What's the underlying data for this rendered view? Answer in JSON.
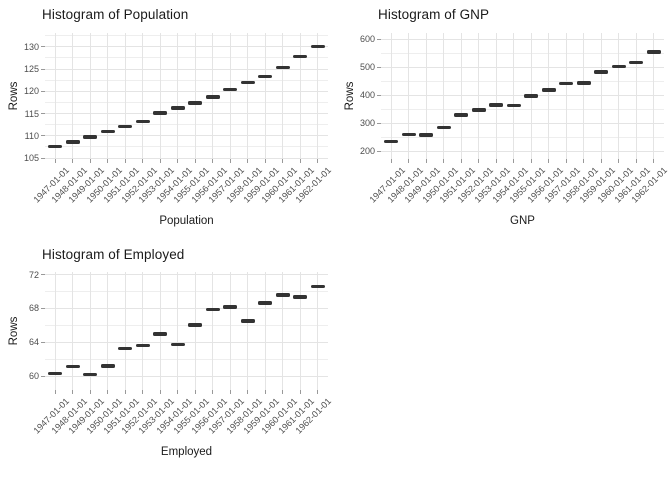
{
  "colors": {
    "background": "#ffffff",
    "dash": "#333333",
    "grid_major": "#e4e4e4",
    "grid_minor": "#eeeeee",
    "tick_mark": "#999999",
    "tick_label": "#4d4d4d",
    "title_text": "#1a1a1a"
  },
  "chart_data": [
    {
      "type": "scatter",
      "marker": "horizontal-dash",
      "title": "Histogram of Population",
      "xlabel": "Population",
      "ylabel": "Rows",
      "legend": "none",
      "grid": true,
      "categories": [
        "1947-01-01",
        "1948-01-01",
        "1949-01-01",
        "1950-01-01",
        "1951-01-01",
        "1952-01-01",
        "1953-01-01",
        "1954-01-01",
        "1955-01-01",
        "1956-01-01",
        "1957-01-01",
        "1958-01-01",
        "1959-01-01",
        "1960-01-01",
        "1961-01-01",
        "1962-01-01"
      ],
      "values": [
        107.608,
        108.632,
        109.773,
        110.929,
        112.075,
        113.27,
        115.094,
        116.219,
        117.388,
        118.734,
        120.445,
        121.95,
        123.366,
        125.368,
        127.852,
        130.081
      ],
      "y_major_ticks": [
        105,
        110,
        115,
        120,
        125,
        130
      ],
      "y_minor_ticks": [
        107.5,
        112.5,
        117.5,
        122.5,
        127.5,
        132.5
      ],
      "ylim": [
        104.8,
        133.1
      ]
    },
    {
      "type": "scatter",
      "marker": "horizontal-dash",
      "title": "Histogram of GNP",
      "xlabel": "GNP",
      "ylabel": "Rows",
      "legend": "none",
      "grid": true,
      "categories": [
        "1947-01-01",
        "1948-01-01",
        "1949-01-01",
        "1950-01-01",
        "1951-01-01",
        "1952-01-01",
        "1953-01-01",
        "1954-01-01",
        "1955-01-01",
        "1956-01-01",
        "1957-01-01",
        "1958-01-01",
        "1959-01-01",
        "1960-01-01",
        "1961-01-01",
        "1962-01-01"
      ],
      "values": [
        234.289,
        259.426,
        258.054,
        284.599,
        328.975,
        346.999,
        365.385,
        363.112,
        397.469,
        419.18,
        442.769,
        444.546,
        482.704,
        502.601,
        518.173,
        554.894
      ],
      "y_major_ticks": [
        200,
        300,
        400,
        500,
        600
      ],
      "y_minor_ticks": [
        250,
        350,
        450,
        550
      ],
      "ylim": [
        172.5,
        622.5
      ]
    },
    {
      "type": "scatter",
      "marker": "horizontal-dash",
      "title": "Histogram of Employed",
      "xlabel": "Employed",
      "ylabel": "Rows",
      "legend": "none",
      "grid": true,
      "categories": [
        "1947-01-01",
        "1948-01-01",
        "1949-01-01",
        "1950-01-01",
        "1951-01-01",
        "1952-01-01",
        "1953-01-01",
        "1954-01-01",
        "1955-01-01",
        "1956-01-01",
        "1957-01-01",
        "1958-01-01",
        "1959-01-01",
        "1960-01-01",
        "1961-01-01",
        "1962-01-01"
      ],
      "values": [
        60.323,
        61.122,
        60.171,
        61.187,
        63.221,
        63.639,
        64.989,
        63.761,
        66.019,
        67.857,
        68.169,
        66.513,
        68.655,
        69.564,
        69.331,
        70.551
      ],
      "y_major_ticks": [
        60,
        64,
        68,
        72
      ],
      "y_minor_ticks": [
        62,
        66,
        70
      ],
      "ylim": [
        58.35,
        72.3
      ]
    }
  ]
}
